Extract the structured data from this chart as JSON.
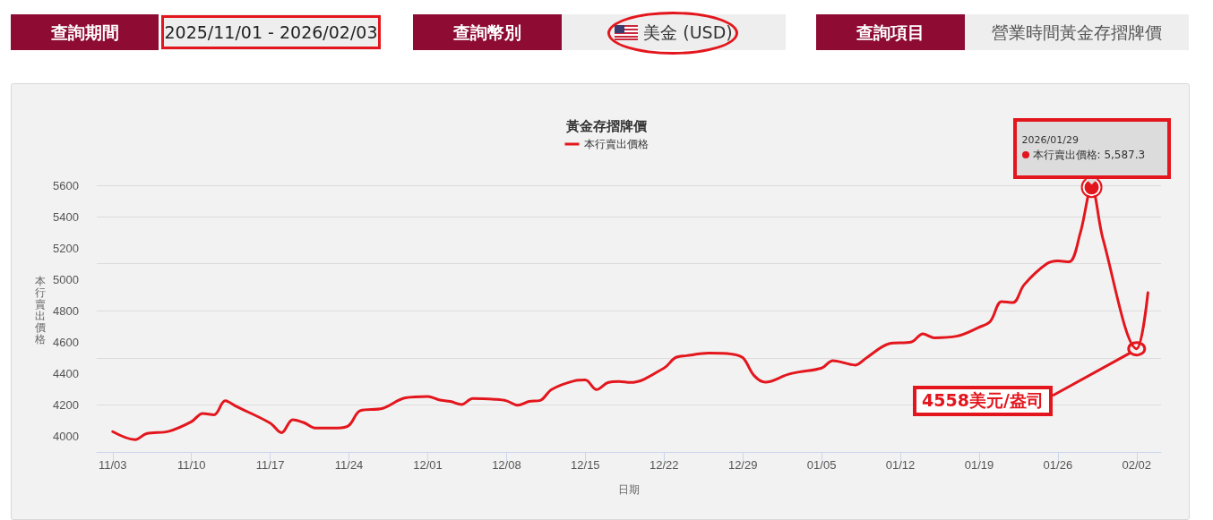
{
  "chart_data": {
    "type": "line",
    "title": "黃金存摺牌價",
    "xlabel": "日期",
    "ylabel": "本行賣出價格",
    "annotations": [
      "查詢期間",
      "2025/11/01 - 2026/02/03",
      "查詢幣別",
      "美金 (USD)",
      "查詢項目",
      "營業時間黃金存摺牌價",
      "2026/01/29",
      {
        "text": "本行賣出價格: 5,587.3",
        "x": "2026-01-29",
        "y": 5587.3
      },
      {
        "text": "4558美元/盎司",
        "x": "2026-02-02",
        "y": 4558
      }
    ],
    "x": [
      "2025-11-03",
      "2025-11-05",
      "2025-11-06",
      "2025-11-08",
      "2025-11-10",
      "2025-11-11",
      "2025-11-12",
      "2025-11-13",
      "2025-11-14",
      "2025-11-17",
      "2025-11-18",
      "2025-11-19",
      "2025-11-20",
      "2025-11-21",
      "2025-11-23",
      "2025-11-24",
      "2025-11-25",
      "2025-11-27",
      "2025-11-29",
      "2025-12-01",
      "2025-12-02",
      "2025-12-03",
      "2025-12-04",
      "2025-12-05",
      "2025-12-07",
      "2025-12-08",
      "2025-12-09",
      "2025-12-10",
      "2025-12-11",
      "2025-12-12",
      "2025-12-14",
      "2025-12-15",
      "2025-12-16",
      "2025-12-17",
      "2025-12-18",
      "2025-12-19",
      "2025-12-22",
      "2025-12-23",
      "2025-12-24",
      "2025-12-26",
      "2025-12-28",
      "2025-12-29",
      "2025-12-30",
      "2025-12-31",
      "2026-01-02",
      "2026-01-03",
      "2026-01-05",
      "2026-01-06",
      "2026-01-08",
      "2026-01-09",
      "2026-01-11",
      "2026-01-13",
      "2026-01-14",
      "2026-01-15",
      "2026-01-17",
      "2026-01-19",
      "2026-01-20",
      "2026-01-21",
      "2026-01-22",
      "2026-01-23",
      "2026-01-25",
      "2026-01-26",
      "2026-01-27",
      "2026-01-28",
      "2026-01-29",
      "2026-01-30",
      "2026-02-02",
      "2026-02-03"
    ],
    "series": [
      {
        "name": "本行賣出價格",
        "color": "#e3161d",
        "values": [
          4030,
          3979,
          4017,
          4032,
          4093,
          4146,
          4137,
          4226,
          4190,
          4084,
          4023,
          4106,
          4087,
          4053,
          4053,
          4070,
          4163,
          4178,
          4245,
          4254,
          4232,
          4222,
          4203,
          4241,
          4235,
          4226,
          4198,
          4222,
          4229,
          4298,
          4353,
          4359,
          4298,
          4342,
          4349,
          4343,
          4435,
          4501,
          4514,
          4530,
          4524,
          4501,
          4387,
          4345,
          4394,
          4410,
          4435,
          4482,
          4454,
          4501,
          4590,
          4602,
          4653,
          4628,
          4638,
          4695,
          4733,
          4858,
          4852,
          4966,
          5099,
          5118,
          5112,
          5298,
          5587.3,
          5260,
          4558,
          4915
        ]
      }
    ],
    "xlim": [
      "2025-11-01T14:00",
      "2026-02-04T04:00"
    ],
    "xticks": [
      {
        "value": "2025-11-03",
        "label": "11/03"
      },
      {
        "value": "2025-11-10",
        "label": "11/10"
      },
      {
        "value": "2025-11-17",
        "label": "11/17"
      },
      {
        "value": "2025-11-24",
        "label": "11/24"
      },
      {
        "value": "2025-12-01",
        "label": "12/01"
      },
      {
        "value": "2025-12-08",
        "label": "12/08"
      },
      {
        "value": "2025-12-15",
        "label": "12/15"
      },
      {
        "value": "2025-12-22",
        "label": "12/22"
      },
      {
        "value": "2025-12-29",
        "label": "12/29"
      },
      {
        "value": "2026-01-05",
        "label": "01/05"
      },
      {
        "value": "2026-01-12",
        "label": "01/12"
      },
      {
        "value": "2026-01-19",
        "label": "01/19"
      },
      {
        "value": "2026-01-26",
        "label": "01/26"
      },
      {
        "value": "2026-02-02",
        "label": "02/02"
      }
    ],
    "ylim": [
      3900,
      5600
    ],
    "yticks": [
      4000,
      4200,
      4400,
      4600,
      4800,
      5000,
      5200,
      5400,
      5600
    ],
    "grid": "y",
    "legend": "top",
    "marker": "none",
    "line_style": "solid"
  }
}
